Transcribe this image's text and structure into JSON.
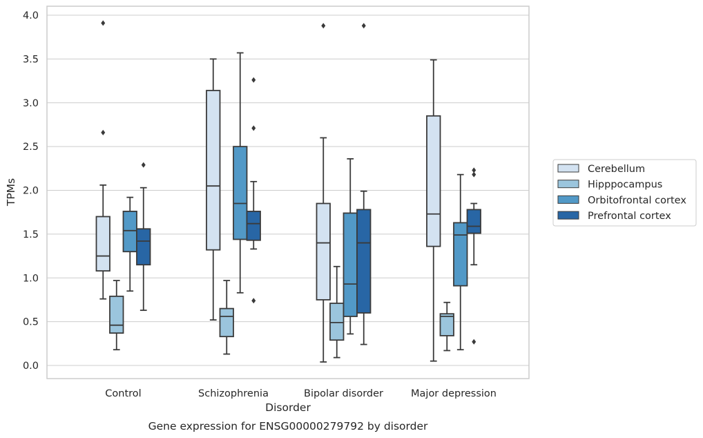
{
  "chart_data": {
    "type": "box",
    "xlabel": "Disorder",
    "ylabel": "TPMs",
    "caption": "Gene expression for ENSG00000279792 by disorder",
    "ylim": [
      -0.14,
      4.1
    ],
    "yticks": [
      "0.0",
      "0.5",
      "1.0",
      "1.5",
      "2.0",
      "2.5",
      "3.0",
      "3.5",
      "4.0"
    ],
    "grid": "horizontal",
    "legend_position": "right",
    "categories": [
      "Control",
      "Schizophrenia",
      "Bipolar disorder",
      "Major depression"
    ],
    "series": [
      {
        "name": "Cerebellum",
        "color": "#d3e2f1",
        "boxes": [
          {
            "whisker_low": 0.76,
            "q1": 1.08,
            "median": 1.25,
            "q3": 1.7,
            "whisker_high": 2.06,
            "outliers": [
              2.66,
              3.91
            ]
          },
          {
            "whisker_low": 0.52,
            "q1": 1.32,
            "median": 2.05,
            "q3": 3.14,
            "whisker_high": 3.5,
            "outliers": []
          },
          {
            "whisker_low": 0.04,
            "q1": 0.75,
            "median": 1.4,
            "q3": 1.85,
            "whisker_high": 2.6,
            "outliers": [
              3.88
            ]
          },
          {
            "whisker_low": 0.05,
            "q1": 1.36,
            "median": 1.73,
            "q3": 2.85,
            "whisker_high": 3.49,
            "outliers": []
          }
        ]
      },
      {
        "name": "Hipppocampus",
        "color": "#9bc5dd",
        "boxes": [
          {
            "whisker_low": 0.18,
            "q1": 0.37,
            "median": 0.46,
            "q3": 0.79,
            "whisker_high": 0.97,
            "outliers": []
          },
          {
            "whisker_low": 0.13,
            "q1": 0.33,
            "median": 0.56,
            "q3": 0.65,
            "whisker_high": 0.97,
            "outliers": []
          },
          {
            "whisker_low": 0.09,
            "q1": 0.29,
            "median": 0.49,
            "q3": 0.71,
            "whisker_high": 1.13,
            "outliers": []
          },
          {
            "whisker_low": 0.17,
            "q1": 0.34,
            "median": 0.56,
            "q3": 0.59,
            "whisker_high": 0.72,
            "outliers": []
          }
        ]
      },
      {
        "name": "Orbitofrontal cortex",
        "color": "#5299c7",
        "boxes": [
          {
            "whisker_low": 0.85,
            "q1": 1.3,
            "median": 1.54,
            "q3": 1.76,
            "whisker_high": 1.92,
            "outliers": []
          },
          {
            "whisker_low": 0.83,
            "q1": 1.44,
            "median": 1.85,
            "q3": 2.5,
            "whisker_high": 3.57,
            "outliers": []
          },
          {
            "whisker_low": 0.36,
            "q1": 0.56,
            "median": 0.93,
            "q3": 1.74,
            "whisker_high": 2.36,
            "outliers": []
          },
          {
            "whisker_low": 0.18,
            "q1": 0.91,
            "median": 1.49,
            "q3": 1.63,
            "whisker_high": 2.18,
            "outliers": []
          }
        ]
      },
      {
        "name": "Prefrontal cortex",
        "color": "#2866a5",
        "boxes": [
          {
            "whisker_low": 0.63,
            "q1": 1.15,
            "median": 1.42,
            "q3": 1.56,
            "whisker_high": 2.03,
            "outliers": [
              2.29
            ]
          },
          {
            "whisker_low": 1.33,
            "q1": 1.43,
            "median": 1.62,
            "q3": 1.76,
            "whisker_high": 2.1,
            "outliers": [
              0.74,
              2.71,
              3.26
            ]
          },
          {
            "whisker_low": 0.24,
            "q1": 0.6,
            "median": 1.4,
            "q3": 1.78,
            "whisker_high": 1.99,
            "outliers": [
              3.88
            ]
          },
          {
            "whisker_low": 1.15,
            "q1": 1.51,
            "median": 1.59,
            "q3": 1.78,
            "whisker_high": 1.85,
            "outliers": [
              0.27,
              2.18,
              2.23
            ]
          }
        ]
      }
    ]
  }
}
